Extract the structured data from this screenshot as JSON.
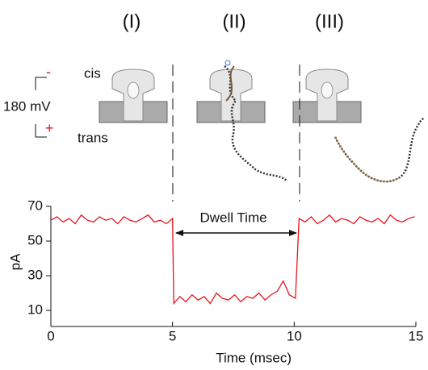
{
  "chart_data": {
    "type": "line",
    "annotations": {
      "stage1": "(I)",
      "stage2": "(II)",
      "stage3": "(III)",
      "cis": "cis",
      "trans": "trans",
      "voltage": "180 mV",
      "minus": "-",
      "plus": "+",
      "dwell": "Dwell Time"
    },
    "xlabel": "Time (msec)",
    "ylabel": "pA",
    "color": "#e8141e",
    "xlim": [
      0,
      15
    ],
    "xticks": [
      0,
      5,
      10,
      15
    ],
    "ylim": [
      4,
      70
    ],
    "yticks": [
      10,
      30,
      50,
      70
    ],
    "x": [
      0,
      0.25,
      0.5,
      0.75,
      1,
      1.25,
      1.5,
      1.75,
      2,
      2.25,
      2.5,
      2.75,
      3,
      3.25,
      3.5,
      3.75,
      4,
      4.25,
      4.5,
      4.75,
      5,
      5.05,
      5.3,
      5.55,
      5.8,
      6.05,
      6.3,
      6.55,
      6.8,
      7.05,
      7.3,
      7.55,
      7.8,
      8.05,
      8.3,
      8.55,
      8.8,
      9.05,
      9.3,
      9.55,
      9.8,
      10.05,
      10.2,
      10.45,
      10.7,
      10.95,
      11.2,
      11.45,
      11.7,
      11.95,
      12.2,
      12.45,
      12.7,
      12.95,
      13.2,
      13.45,
      13.7,
      13.95,
      14.2,
      14.45,
      14.7,
      14.95
    ],
    "values": [
      62,
      64,
      61,
      63,
      60,
      65,
      62,
      61,
      64,
      62,
      63,
      60,
      64,
      62,
      61,
      63,
      65,
      61,
      62,
      60,
      63,
      14,
      18,
      15,
      19,
      16,
      18,
      14,
      20,
      17,
      16,
      19,
      15,
      18,
      17,
      20,
      16,
      19,
      21,
      27,
      19,
      17,
      63,
      61,
      64,
      60,
      62,
      65,
      61,
      63,
      62,
      60,
      64,
      62,
      61,
      63,
      60,
      65,
      62,
      61,
      63,
      64
    ]
  }
}
